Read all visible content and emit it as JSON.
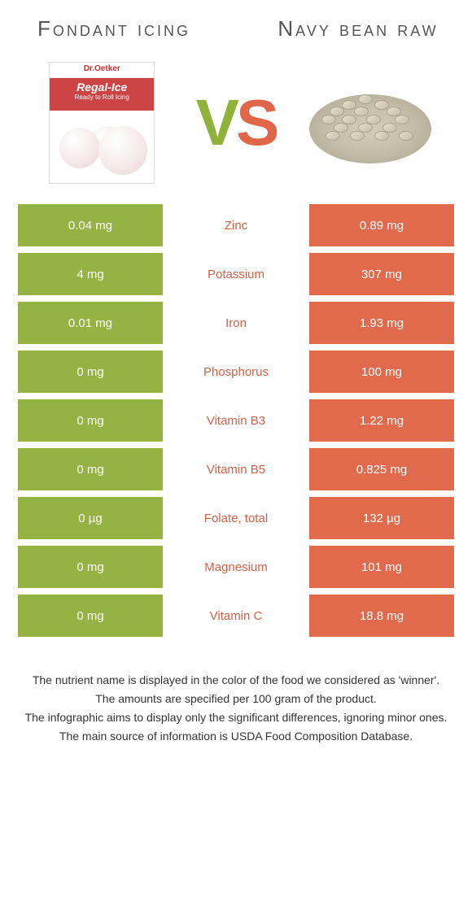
{
  "titles": {
    "left": "Fondant icing",
    "right": "Navy bean raw"
  },
  "vs": {
    "v": "V",
    "s": "S"
  },
  "product_box": {
    "brand": "Dr.Oetker",
    "name": "Regal-Ice",
    "sub": "Ready to Roll Icing"
  },
  "colors": {
    "green": "#94b342",
    "orange": "#e16a4d",
    "mid_green": "#8aa83c",
    "mid_orange": "#d85f43"
  },
  "rows": [
    {
      "left": "0.04 mg",
      "mid": "Zinc",
      "right": "0.89 mg",
      "winner": "right"
    },
    {
      "left": "4 mg",
      "mid": "Potassium",
      "right": "307 mg",
      "winner": "right"
    },
    {
      "left": "0.01 mg",
      "mid": "Iron",
      "right": "1.93 mg",
      "winner": "right"
    },
    {
      "left": "0 mg",
      "mid": "Phosphorus",
      "right": "100 mg",
      "winner": "right"
    },
    {
      "left": "0 mg",
      "mid": "Vitamin B3",
      "right": "1.22 mg",
      "winner": "right"
    },
    {
      "left": "0 mg",
      "mid": "Vitamin B5",
      "right": "0.825 mg",
      "winner": "right"
    },
    {
      "left": "0 µg",
      "mid": "Folate, total",
      "right": "132 µg",
      "winner": "right"
    },
    {
      "left": "0 mg",
      "mid": "Magnesium",
      "right": "101 mg",
      "winner": "right"
    },
    {
      "left": "0 mg",
      "mid": "Vitamin C",
      "right": "18.8 mg",
      "winner": "right"
    }
  ],
  "footer": [
    "The nutrient name is displayed in the color of the food we considered as 'winner'.",
    "The amounts are specified per 100 gram of the product.",
    "The infographic aims to display only the significant differences, ignoring minor ones.",
    "The main source of information is USDA Food Composition Database."
  ]
}
